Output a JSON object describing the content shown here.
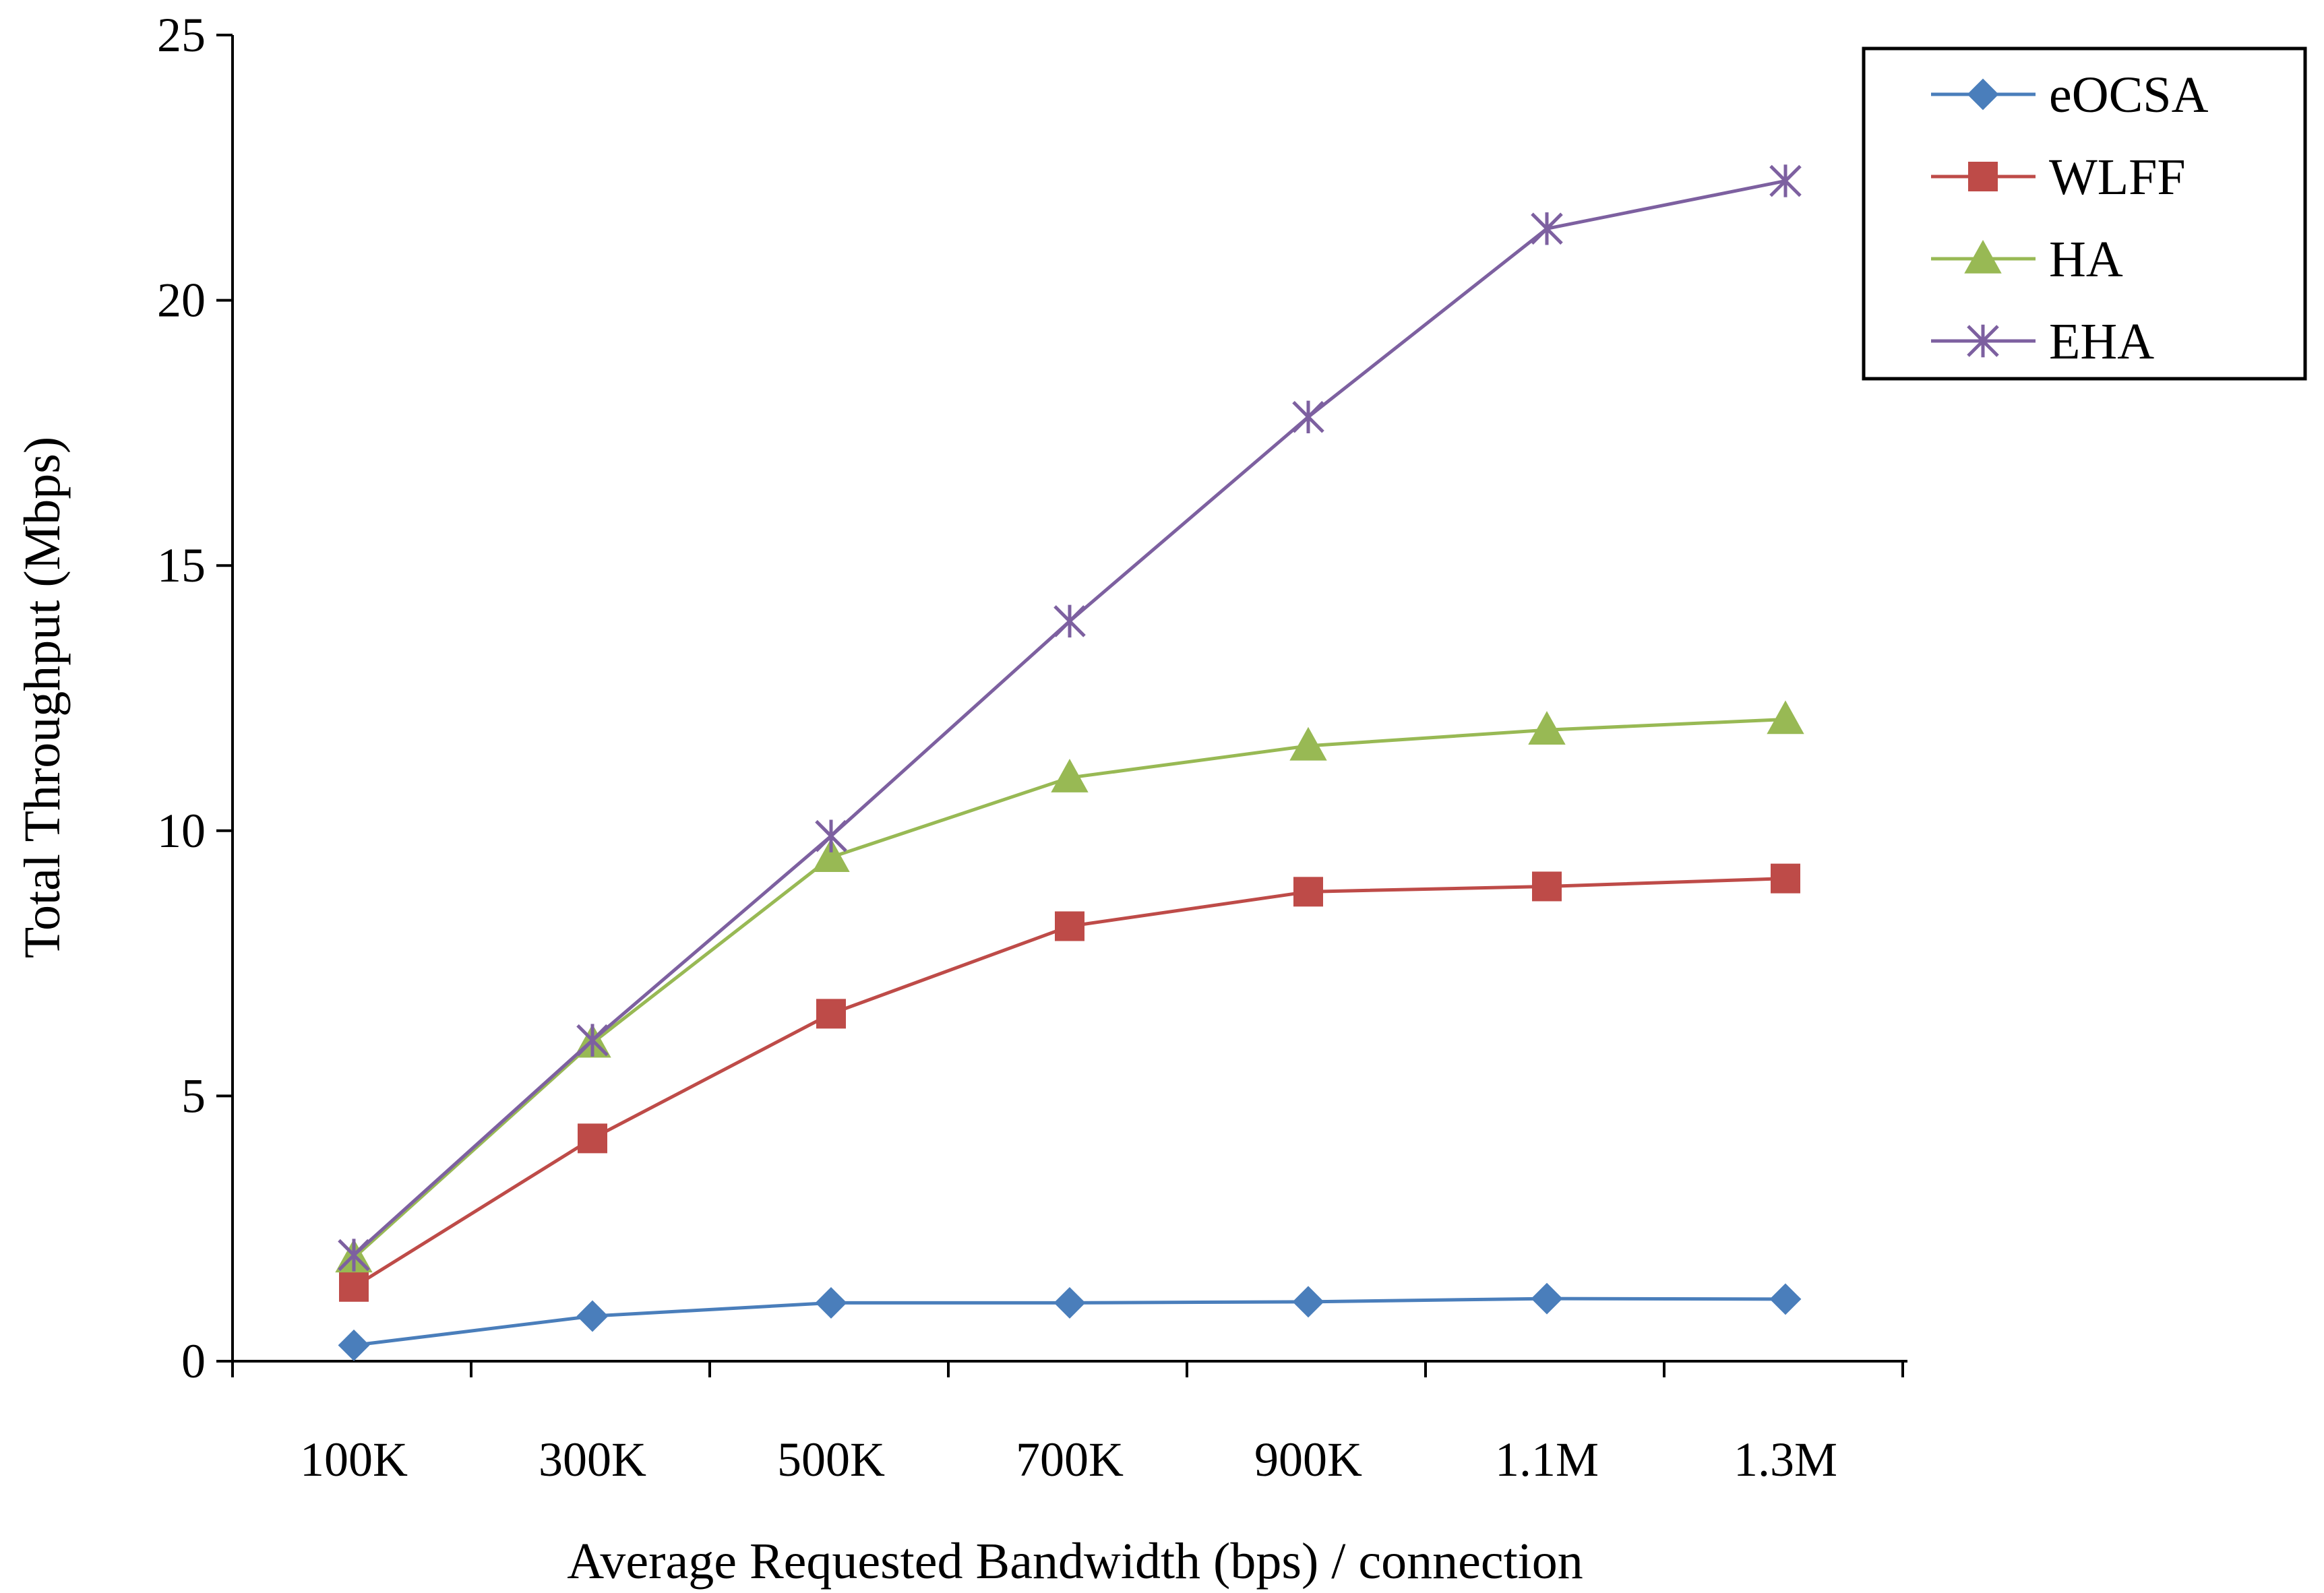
{
  "chart_data": {
    "type": "line",
    "title": "",
    "xlabel": "Average Requested Bandwidth (bps) / connection",
    "ylabel": "Total Throughput (Mbps)",
    "categories": [
      "100K",
      "300K",
      "500K",
      "700K",
      "900K",
      "1.1M",
      "1.3M"
    ],
    "ylim": [
      0,
      25
    ],
    "yticks": [
      0,
      5,
      10,
      15,
      20,
      25
    ],
    "grid": false,
    "legend_position": "top-right",
    "series": [
      {
        "name": "eOCSA",
        "color": "#4A7EBB",
        "marker": "diamond",
        "values": [
          0.3,
          0.85,
          1.1,
          1.1,
          1.12,
          1.18,
          1.17
        ]
      },
      {
        "name": "WLFF",
        "color": "#BE4B48",
        "marker": "square",
        "values": [
          1.4,
          4.2,
          6.55,
          8.2,
          8.85,
          8.95,
          9.1
        ]
      },
      {
        "name": "HA",
        "color": "#98B954",
        "marker": "triangle",
        "values": [
          1.95,
          6.0,
          9.5,
          11.0,
          11.6,
          11.9,
          12.1
        ]
      },
      {
        "name": "EHA",
        "color": "#7D60A0",
        "marker": "asterisk",
        "values": [
          2.0,
          6.05,
          9.9,
          13.95,
          17.8,
          21.35,
          22.25
        ]
      }
    ]
  }
}
